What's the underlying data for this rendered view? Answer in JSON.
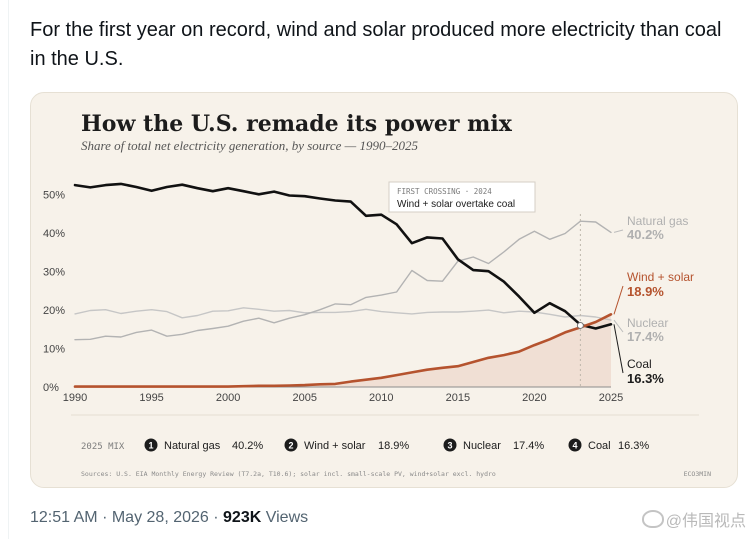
{
  "post": {
    "text": "For the first year on record, wind and solar produced more electricity than coal in the U.S.",
    "time": "12:51 AM",
    "separator": "·",
    "date": "May 28, 2026",
    "views_count": "923K",
    "views_label": "Views",
    "watermark": "@伟国视点"
  },
  "colors": {
    "coal": "#111111",
    "natural_gas": "#b3b3b3",
    "nuclear": "#c6c6c6",
    "wind_solar": "#b5532e",
    "wind_solar_fill": "#f0dfd4",
    "card_bg": "#f7f2ea",
    "muted_text": "#7d7d7d"
  },
  "chart_data": {
    "type": "line",
    "title": "How the U.S. remade its power mix",
    "subtitle": "Share of total net electricity generation, by source — 1990–2025",
    "xlabel": "",
    "ylabel": "",
    "x": [
      1990,
      1991,
      1992,
      1993,
      1994,
      1995,
      1996,
      1997,
      1998,
      1999,
      2000,
      2001,
      2002,
      2003,
      2004,
      2005,
      2006,
      2007,
      2008,
      2009,
      2010,
      2011,
      2012,
      2013,
      2014,
      2015,
      2016,
      2017,
      2018,
      2019,
      2020,
      2021,
      2022,
      2023,
      2024,
      2025
    ],
    "xlim": [
      1990,
      2025
    ],
    "ylim": [
      0,
      52
    ],
    "x_ticks": [
      "1990",
      "1995",
      "2000",
      "2005",
      "2010",
      "2015",
      "2020",
      "2025"
    ],
    "x_tick_values": [
      1990,
      1995,
      2000,
      2005,
      2010,
      2015,
      2020,
      2025
    ],
    "y_ticks": [
      "0%",
      "10%",
      "20%",
      "30%",
      "40%",
      "50%"
    ],
    "y_tick_values": [
      0,
      10,
      20,
      30,
      40,
      50
    ],
    "grid": "none",
    "series": [
      {
        "key": "coal",
        "name": "Coal",
        "end_label": "16.3%",
        "values": [
          52.5,
          51.9,
          52.5,
          52.8,
          52.0,
          51.0,
          52.0,
          52.6,
          51.7,
          50.9,
          51.7,
          50.9,
          50.1,
          50.8,
          49.8,
          49.6,
          49.0,
          48.5,
          48.2,
          44.5,
          44.8,
          42.3,
          37.4,
          38.9,
          38.6,
          33.2,
          30.4,
          30.1,
          27.4,
          23.5,
          19.3,
          21.8,
          19.7,
          16.2,
          15.2,
          16.3
        ]
      },
      {
        "key": "natural_gas",
        "name": "Natural gas",
        "end_label": "40.2%",
        "values": [
          12.3,
          12.4,
          13.2,
          13.0,
          14.2,
          14.8,
          13.2,
          13.7,
          14.7,
          15.2,
          15.8,
          17.1,
          17.9,
          16.7,
          17.9,
          18.8,
          20.1,
          21.6,
          21.4,
          23.3,
          23.9,
          24.7,
          30.3,
          27.7,
          27.5,
          32.7,
          33.8,
          32.1,
          35.1,
          38.4,
          40.5,
          38.4,
          39.9,
          43.1,
          42.9,
          40.2
        ]
      },
      {
        "key": "nuclear",
        "name": "Nuclear",
        "end_label": "17.4%",
        "values": [
          19.0,
          19.9,
          20.1,
          19.1,
          19.7,
          20.1,
          19.6,
          18.0,
          18.6,
          19.7,
          19.8,
          20.6,
          20.2,
          19.7,
          19.9,
          19.3,
          19.4,
          19.4,
          19.6,
          20.2,
          19.6,
          19.3,
          19.0,
          19.4,
          19.5,
          19.5,
          19.7,
          20.0,
          19.3,
          19.7,
          19.5,
          18.9,
          18.2,
          18.6,
          18.2,
          17.4
        ]
      },
      {
        "key": "wind_solar",
        "name": "Wind + solar",
        "end_label": "18.9%",
        "values": [
          0.1,
          0.1,
          0.1,
          0.1,
          0.1,
          0.1,
          0.1,
          0.1,
          0.1,
          0.1,
          0.1,
          0.2,
          0.3,
          0.3,
          0.4,
          0.5,
          0.7,
          0.8,
          1.4,
          1.9,
          2.4,
          3.1,
          3.8,
          4.5,
          5.0,
          5.4,
          6.5,
          7.6,
          8.3,
          9.2,
          10.9,
          12.4,
          14.2,
          15.5,
          16.9,
          18.9
        ]
      }
    ],
    "annotation": {
      "kicker": "FIRST CROSSING · 2024",
      "text": "Wind + solar overtake coal",
      "x": 2023,
      "y": 16.0
    },
    "mix": {
      "label": "2025 MIX",
      "items": [
        {
          "num": "1",
          "name": "Natural gas",
          "value": "40.2%"
        },
        {
          "num": "2",
          "name": "Wind + solar",
          "value": "18.9%"
        },
        {
          "num": "3",
          "name": "Nuclear",
          "value": "17.4%"
        },
        {
          "num": "4",
          "name": "Coal",
          "value": "16.3%"
        }
      ]
    },
    "source": "Sources: U.S. EIA Monthly Energy Review (T7.2a, T10.6); solar incl. small-scale PV, wind+solar excl. hydro",
    "credit": "ECO3MIN"
  }
}
